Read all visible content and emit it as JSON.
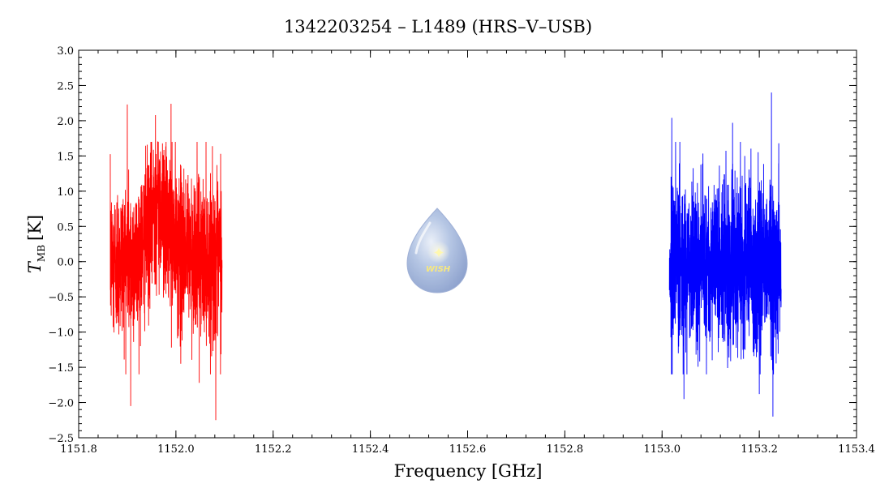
{
  "chart_data": {
    "type": "line",
    "title": "1342203254 – L1489 (HRS–V–USB)",
    "xlabel": "Frequency [GHz]",
    "ylabel_main": "T",
    "ylabel_sub": "MB",
    "ylabel_unit": "[K]",
    "xlim": [
      1151.8,
      1153.4
    ],
    "ylim": [
      -2.5,
      3.0
    ],
    "x_ticks": [
      1151.8,
      1152.0,
      1152.2,
      1152.4,
      1152.6,
      1152.8,
      1153.0,
      1153.2,
      1153.4
    ],
    "x_tick_labels": [
      "1151.8",
      "1152.0",
      "1152.2",
      "1152.4",
      "1152.6",
      "1152.8",
      "1153.0",
      "1153.2",
      "1153.4"
    ],
    "y_ticks": [
      -2.5,
      -2.0,
      -1.5,
      -1.0,
      -0.5,
      0.0,
      0.5,
      1.0,
      1.5,
      2.0,
      2.5,
      3.0
    ],
    "y_tick_labels": [
      "−2.5",
      "−2.0",
      "−1.5",
      "−1.0",
      "−0.5",
      "0.0",
      "0.5",
      "1.0",
      "1.5",
      "2.0",
      "2.5",
      "3.0"
    ],
    "grid": false,
    "legend": "none",
    "series": [
      {
        "color": "#ff0000",
        "x_range": [
          1151.865,
          1152.095
        ],
        "mean_profile": [
          [
            1151.865,
            0.0
          ],
          [
            1151.92,
            0.05
          ],
          [
            1151.94,
            0.35
          ],
          [
            1151.96,
            0.9
          ],
          [
            1151.98,
            0.55
          ],
          [
            1152.0,
            0.2
          ],
          [
            1152.04,
            0.1
          ],
          [
            1152.095,
            0.0
          ]
        ],
        "noise_rms": 0.55,
        "peaks": [
          {
            "x": 1151.9,
            "y": 2.23
          },
          {
            "x": 1151.907,
            "y": -2.05
          },
          {
            "x": 1151.958,
            "y": 2.08
          },
          {
            "x": 1151.99,
            "y": 2.24
          },
          {
            "x": 1152.01,
            "y": -1.45
          },
          {
            "x": 1152.048,
            "y": -1.72
          },
          {
            "x": 1152.082,
            "y": -2.25
          },
          {
            "x": 1152.092,
            "y": 1.53
          }
        ]
      },
      {
        "color": "#0000ff",
        "x_range": [
          1153.015,
          1153.245
        ],
        "mean_profile": [
          [
            1153.015,
            0.0
          ],
          [
            1153.13,
            0.0
          ],
          [
            1153.245,
            0.0
          ]
        ],
        "noise_rms": 0.6,
        "peaks": [
          {
            "x": 1153.02,
            "y": 2.04
          },
          {
            "x": 1153.045,
            "y": -1.95
          },
          {
            "x": 1153.145,
            "y": 1.97
          },
          {
            "x": 1153.2,
            "y": -1.88
          },
          {
            "x": 1153.225,
            "y": 2.4
          },
          {
            "x": 1153.228,
            "y": -2.2
          },
          {
            "x": 1153.24,
            "y": 1.68
          }
        ]
      }
    ]
  },
  "watermark": {
    "text": "WISH",
    "icon": "star-icon"
  }
}
